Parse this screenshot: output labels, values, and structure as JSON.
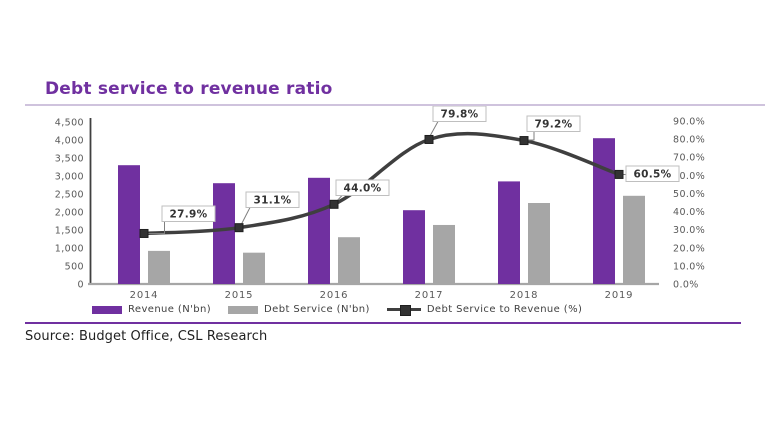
{
  "title": "Debt service to revenue ratio",
  "source": "Source: Budget Office, CSL Research",
  "colors": {
    "title": "#7030a0",
    "title_rule": "#cfc3dd",
    "footer_rule": "#7030a0",
    "revenue_bar": "#7030a0",
    "debt_bar": "#a6a6a6",
    "ratio_line": "#3f3f3f",
    "marker": "#333333",
    "marker_border": "#1f1f1f",
    "axis_text": "#595959",
    "axis_line": "#404040",
    "baseline": "#a6a6a6",
    "label_text": "#333333",
    "label_box_border": "#bfbfbf",
    "leader_line": "#7f7f7f"
  },
  "legend": [
    {
      "label": "Revenue (N'bn)",
      "swatch": "bar",
      "color": "#7030a0"
    },
    {
      "label": "Debt Service (N'bn)",
      "swatch": "bar",
      "color": "#a6a6a6"
    },
    {
      "label": "Debt Service to Revenue (%)",
      "swatch": "line-marker",
      "color": "#3f3f3f"
    }
  ],
  "chart_data": {
    "type": "bar+line combo",
    "title": "Debt service to revenue ratio",
    "categories": [
      "2014",
      "2015",
      "2016",
      "2017",
      "2018",
      "2019"
    ],
    "series": [
      {
        "name": "Revenue (N'bn)",
        "type": "bar",
        "axis": "left",
        "values": [
          3300,
          2800,
          2950,
          2050,
          2850,
          4050
        ]
      },
      {
        "name": "Debt Service (N'bn)",
        "type": "bar",
        "axis": "left",
        "values": [
          920,
          870,
          1300,
          1640,
          2250,
          2450
        ]
      },
      {
        "name": "Debt Service to Revenue (%)",
        "type": "line",
        "axis": "right",
        "values": [
          27.9,
          31.1,
          44.0,
          79.8,
          79.2,
          60.5
        ],
        "labels": [
          "27.9%",
          "31.1%",
          "44.0%",
          "79.8%",
          "79.2%",
          "60.5%"
        ]
      }
    ],
    "left_axis": {
      "min": 0,
      "max": 4500,
      "step": 500,
      "ticks": [
        "4,500",
        "4,000",
        "3,500",
        "3,000",
        "2,500",
        "2,000",
        "1,500",
        "1,000",
        "500",
        "0"
      ]
    },
    "right_axis": {
      "min": 0,
      "max": 90,
      "step": 10,
      "ticks": [
        "90.0%",
        "80.0%",
        "70.0%",
        "60.0%",
        "50.0%",
        "40.0%",
        "30.0%",
        "20.0%",
        "10.0%",
        "0.0%"
      ]
    },
    "grid": false,
    "legend_position": "bottom"
  }
}
